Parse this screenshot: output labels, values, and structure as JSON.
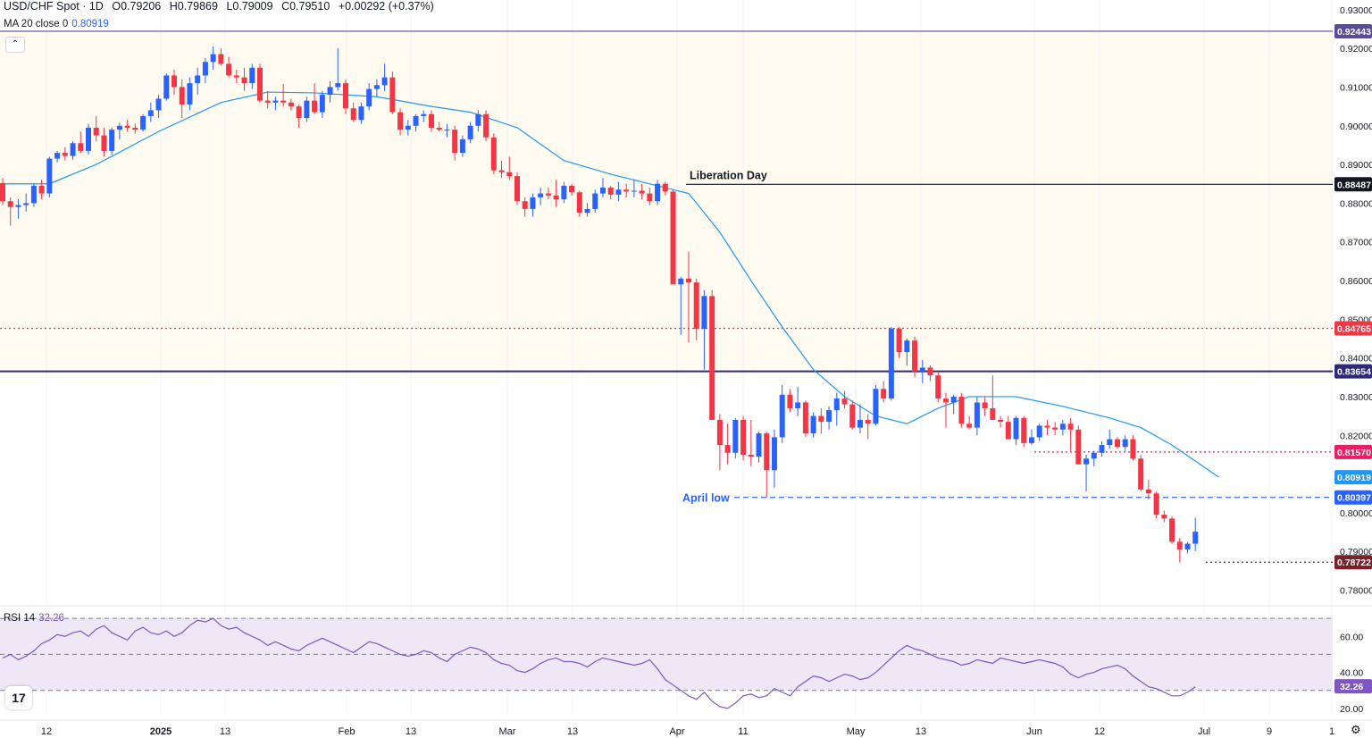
{
  "header": {
    "symbol": "USD/CHF Spot · 1D",
    "o_label": "O",
    "o_value": "0.79206",
    "h_label": "H",
    "h_value": "0.79869",
    "l_label": "L",
    "l_value": "0.79009",
    "c_label": "C",
    "c_value": "0.79510",
    "change": "+0.00292 (+0.37%)"
  },
  "ma_indicator": {
    "label": "MA 20 close 0",
    "value": "0.80919",
    "color": "#2196f3"
  },
  "rsi_indicator": {
    "label": "RSI 14",
    "value": "32.26",
    "color": "#7e57c2"
  },
  "colors": {
    "up": "#2962ff",
    "down": "#f23645",
    "ma": "#2196f3",
    "rsi": "#7e57c2",
    "band": "#ede7f6",
    "shade": "#fffbf0"
  },
  "icons": {
    "collapse": "chevron-up-icon",
    "logo": "tradingview-logo-icon",
    "settings": "gear-icon"
  },
  "chart_data": {
    "type": "candlestick",
    "title": "USD/CHF Spot · 1D",
    "y_range": [
      0.7755,
      0.9325
    ],
    "y_ticks": [
      "0.93000",
      "0.92000",
      "0.91000",
      "0.90000",
      "0.89000",
      "0.88000",
      "0.87000",
      "0.86000",
      "0.85000",
      "0.84000",
      "0.83000",
      "0.82000",
      "0.81000",
      "0.80000",
      "0.79000",
      "0.78000"
    ],
    "x_ticks": [
      "12",
      "2025",
      "13",
      "Feb",
      "13",
      "Mar",
      "13",
      "Apr",
      "11",
      "May",
      "13",
      "Jun",
      "12",
      "Jul",
      "9",
      "1"
    ],
    "annotations": [
      {
        "text": "Liberation Day",
        "price": 0.88487,
        "label": "0.88487",
        "style": "solid",
        "color": "#131722"
      },
      {
        "text": "April low",
        "price": 0.80397,
        "label": "0.80397",
        "style": "dashed",
        "color": "#2962ff"
      },
      {
        "text": "",
        "price": 0.92443,
        "label": "0.92443",
        "style": "solid",
        "color": "#5b4a9a"
      },
      {
        "text": "",
        "price": 0.84765,
        "label": "0.84765",
        "style": "dotted",
        "color": "#f23645"
      },
      {
        "text": "",
        "price": 0.83654,
        "label": "0.83654",
        "style": "solid",
        "color": "#2e2a7a"
      },
      {
        "text": "",
        "price": 0.8157,
        "label": "0.81570",
        "style": "dotted",
        "color": "#e91e63"
      },
      {
        "text": "",
        "price": 0.78722,
        "label": "0.78722",
        "style": "dotted",
        "color": "#7b1f2a"
      }
    ],
    "ma_label": "0.80919",
    "ohlc": [
      [
        0.8852,
        0.8865,
        0.8795,
        0.8805
      ],
      [
        0.8805,
        0.8815,
        0.8742,
        0.879
      ],
      [
        0.879,
        0.881,
        0.876,
        0.8795
      ],
      [
        0.8795,
        0.8825,
        0.8778,
        0.88
      ],
      [
        0.88,
        0.8852,
        0.879,
        0.8845
      ],
      [
        0.8845,
        0.886,
        0.881,
        0.8825
      ],
      [
        0.8825,
        0.892,
        0.8815,
        0.8915
      ],
      [
        0.8915,
        0.8935,
        0.8905,
        0.893
      ],
      [
        0.893,
        0.8945,
        0.891,
        0.8922
      ],
      [
        0.8922,
        0.896,
        0.8912,
        0.8955
      ],
      [
        0.8955,
        0.8985,
        0.893,
        0.8935
      ],
      [
        0.8935,
        0.9005,
        0.8925,
        0.8995
      ],
      [
        0.8995,
        0.9025,
        0.896,
        0.8975
      ],
      [
        0.8975,
        0.8995,
        0.892,
        0.8935
      ],
      [
        0.8935,
        0.8995,
        0.8925,
        0.899
      ],
      [
        0.899,
        0.9008,
        0.8965,
        0.9
      ],
      [
        0.9,
        0.9015,
        0.8985,
        0.8995
      ],
      [
        0.8995,
        0.9005,
        0.898,
        0.899
      ],
      [
        0.899,
        0.903,
        0.8985,
        0.9025
      ],
      [
        0.9025,
        0.906,
        0.901,
        0.904
      ],
      [
        0.904,
        0.908,
        0.902,
        0.907
      ],
      [
        0.907,
        0.9135,
        0.9065,
        0.913
      ],
      [
        0.913,
        0.9145,
        0.908,
        0.91
      ],
      [
        0.91,
        0.912,
        0.902,
        0.9055
      ],
      [
        0.9055,
        0.9125,
        0.904,
        0.911
      ],
      [
        0.911,
        0.915,
        0.908,
        0.913
      ],
      [
        0.913,
        0.9175,
        0.911,
        0.9165
      ],
      [
        0.9165,
        0.9205,
        0.9145,
        0.9185
      ],
      [
        0.9185,
        0.92,
        0.9155,
        0.916
      ],
      [
        0.916,
        0.9178,
        0.9125,
        0.913
      ],
      [
        0.913,
        0.9145,
        0.911,
        0.9125
      ],
      [
        0.9125,
        0.915,
        0.909,
        0.911
      ],
      [
        0.911,
        0.916,
        0.9095,
        0.915
      ],
      [
        0.915,
        0.916,
        0.906,
        0.9065
      ],
      [
        0.9065,
        0.909,
        0.9045,
        0.906
      ],
      [
        0.906,
        0.9075,
        0.904,
        0.9065
      ],
      [
        0.9065,
        0.9108,
        0.905,
        0.906
      ],
      [
        0.906,
        0.907,
        0.904,
        0.905
      ],
      [
        0.905,
        0.9055,
        0.8995,
        0.902
      ],
      [
        0.902,
        0.9075,
        0.901,
        0.9065
      ],
      [
        0.9065,
        0.911,
        0.903,
        0.9035
      ],
      [
        0.9035,
        0.909,
        0.902,
        0.908
      ],
      [
        0.908,
        0.9115,
        0.906,
        0.91
      ],
      [
        0.91,
        0.92,
        0.909,
        0.911
      ],
      [
        0.911,
        0.912,
        0.903,
        0.9045
      ],
      [
        0.9045,
        0.906,
        0.901,
        0.9015
      ],
      [
        0.9015,
        0.906,
        0.9005,
        0.905
      ],
      [
        0.905,
        0.911,
        0.904,
        0.9095
      ],
      [
        0.9095,
        0.912,
        0.9075,
        0.9105
      ],
      [
        0.9105,
        0.916,
        0.909,
        0.9125
      ],
      [
        0.9125,
        0.914,
        0.903,
        0.9035
      ],
      [
        0.9035,
        0.9045,
        0.8975,
        0.899
      ],
      [
        0.899,
        0.9015,
        0.8975,
        0.9
      ],
      [
        0.9,
        0.903,
        0.8985,
        0.9025
      ],
      [
        0.9025,
        0.904,
        0.901,
        0.903
      ],
      [
        0.903,
        0.904,
        0.8985,
        0.8995
      ],
      [
        0.8995,
        0.901,
        0.8985,
        0.899
      ],
      [
        0.899,
        0.9005,
        0.897,
        0.899
      ],
      [
        0.899,
        0.9,
        0.891,
        0.893
      ],
      [
        0.893,
        0.8975,
        0.892,
        0.8965
      ],
      [
        0.8965,
        0.901,
        0.8955,
        0.9
      ],
      [
        0.9,
        0.904,
        0.8985,
        0.903
      ],
      [
        0.903,
        0.904,
        0.896,
        0.897
      ],
      [
        0.897,
        0.898,
        0.8875,
        0.8885
      ],
      [
        0.8885,
        0.891,
        0.8865,
        0.888
      ],
      [
        0.888,
        0.892,
        0.886,
        0.887
      ],
      [
        0.887,
        0.888,
        0.8795,
        0.8805
      ],
      [
        0.8805,
        0.8815,
        0.8765,
        0.8785
      ],
      [
        0.8785,
        0.8825,
        0.8765,
        0.8815
      ],
      [
        0.8815,
        0.884,
        0.8795,
        0.8825
      ],
      [
        0.8825,
        0.884,
        0.881,
        0.882
      ],
      [
        0.882,
        0.886,
        0.879,
        0.881
      ],
      [
        0.881,
        0.8855,
        0.88,
        0.8845
      ],
      [
        0.8845,
        0.885,
        0.882,
        0.8828
      ],
      [
        0.8828,
        0.8832,
        0.8765,
        0.8775
      ],
      [
        0.8775,
        0.88,
        0.8765,
        0.8785
      ],
      [
        0.8785,
        0.8835,
        0.8775,
        0.8825
      ],
      [
        0.8825,
        0.8865,
        0.8815,
        0.884
      ],
      [
        0.884,
        0.8845,
        0.881,
        0.8822
      ],
      [
        0.8822,
        0.8855,
        0.8805,
        0.8835
      ],
      [
        0.8835,
        0.885,
        0.8815,
        0.883
      ],
      [
        0.883,
        0.886,
        0.8815,
        0.8832
      ],
      [
        0.8832,
        0.885,
        0.881,
        0.8825
      ],
      [
        0.8825,
        0.884,
        0.8795,
        0.8805
      ],
      [
        0.8805,
        0.886,
        0.8795,
        0.885
      ],
      [
        0.885,
        0.8855,
        0.882,
        0.883
      ],
      [
        0.883,
        0.8835,
        0.859,
        0.859
      ],
      [
        0.859,
        0.861,
        0.846,
        0.8605
      ],
      [
        0.8605,
        0.8675,
        0.844,
        0.8595
      ],
      [
        0.8595,
        0.8605,
        0.8445,
        0.8475
      ],
      [
        0.8475,
        0.8575,
        0.837,
        0.856
      ],
      [
        0.856,
        0.8575,
        0.824,
        0.824
      ],
      [
        0.824,
        0.8255,
        0.811,
        0.8175
      ],
      [
        0.8175,
        0.823,
        0.8125,
        0.8155
      ],
      [
        0.8155,
        0.8245,
        0.814,
        0.824
      ],
      [
        0.824,
        0.825,
        0.8135,
        0.815
      ],
      [
        0.815,
        0.824,
        0.812,
        0.8145
      ],
      [
        0.8145,
        0.821,
        0.813,
        0.8205
      ],
      [
        0.8205,
        0.821,
        0.804,
        0.811
      ],
      [
        0.811,
        0.8215,
        0.8065,
        0.8195
      ],
      [
        0.8195,
        0.833,
        0.818,
        0.8305
      ],
      [
        0.8305,
        0.832,
        0.826,
        0.827
      ],
      [
        0.827,
        0.8325,
        0.825,
        0.8285
      ],
      [
        0.8285,
        0.829,
        0.8195,
        0.8205
      ],
      [
        0.8205,
        0.826,
        0.8195,
        0.825
      ],
      [
        0.825,
        0.827,
        0.8205,
        0.8235
      ],
      [
        0.8235,
        0.8275,
        0.8215,
        0.8265
      ],
      [
        0.8265,
        0.831,
        0.8225,
        0.8295
      ],
      [
        0.8295,
        0.8315,
        0.827,
        0.828
      ],
      [
        0.828,
        0.829,
        0.8215,
        0.822
      ],
      [
        0.822,
        0.828,
        0.8205,
        0.824
      ],
      [
        0.824,
        0.8255,
        0.819,
        0.823
      ],
      [
        0.823,
        0.833,
        0.8225,
        0.832
      ],
      [
        0.832,
        0.834,
        0.8285,
        0.8295
      ],
      [
        0.8295,
        0.848,
        0.829,
        0.8476
      ],
      [
        0.8476,
        0.848,
        0.84,
        0.8415
      ],
      [
        0.8415,
        0.845,
        0.838,
        0.8445
      ],
      [
        0.8445,
        0.8455,
        0.835,
        0.8365
      ],
      [
        0.8365,
        0.8395,
        0.8335,
        0.8375
      ],
      [
        0.8375,
        0.838,
        0.834,
        0.8355
      ],
      [
        0.8355,
        0.8365,
        0.8285,
        0.8295
      ],
      [
        0.8295,
        0.831,
        0.822,
        0.8285
      ],
      [
        0.8285,
        0.8305,
        0.8255,
        0.83
      ],
      [
        0.83,
        0.831,
        0.822,
        0.823
      ],
      [
        0.823,
        0.825,
        0.8215,
        0.822
      ],
      [
        0.822,
        0.83,
        0.82,
        0.8285
      ],
      [
        0.8285,
        0.83,
        0.825,
        0.827
      ],
      [
        0.827,
        0.8355,
        0.8255,
        0.824
      ],
      [
        0.824,
        0.825,
        0.822,
        0.8235
      ],
      [
        0.8235,
        0.825,
        0.8195,
        0.819
      ],
      [
        0.819,
        0.825,
        0.8175,
        0.8245
      ],
      [
        0.8245,
        0.825,
        0.817,
        0.818
      ],
      [
        0.818,
        0.8215,
        0.8175,
        0.8195
      ],
      [
        0.8195,
        0.823,
        0.8185,
        0.8225
      ],
      [
        0.8225,
        0.824,
        0.82,
        0.822
      ],
      [
        0.822,
        0.8235,
        0.82,
        0.8215
      ],
      [
        0.8215,
        0.824,
        0.82,
        0.823
      ],
      [
        0.823,
        0.8245,
        0.816,
        0.8215
      ],
      [
        0.8215,
        0.8225,
        0.8125,
        0.8125
      ],
      [
        0.8125,
        0.815,
        0.8055,
        0.814
      ],
      [
        0.814,
        0.816,
        0.812,
        0.8155
      ],
      [
        0.8155,
        0.8185,
        0.8145,
        0.8175
      ],
      [
        0.8175,
        0.8215,
        0.8165,
        0.819
      ],
      [
        0.819,
        0.8195,
        0.8165,
        0.817
      ],
      [
        0.817,
        0.82,
        0.816,
        0.819
      ],
      [
        0.819,
        0.82,
        0.8135,
        0.814
      ],
      [
        0.814,
        0.815,
        0.8055,
        0.806
      ],
      [
        0.806,
        0.8085,
        0.8035,
        0.805
      ],
      [
        0.805,
        0.8055,
        0.7985,
        0.7995
      ],
      [
        0.7995,
        0.8005,
        0.7975,
        0.7985
      ],
      [
        0.7985,
        0.799,
        0.792,
        0.7925
      ],
      [
        0.7925,
        0.7935,
        0.7872,
        0.7905
      ],
      [
        0.7905,
        0.7925,
        0.7895,
        0.792
      ],
      [
        0.792,
        0.7987,
        0.7901,
        0.7951
      ]
    ],
    "ma20": [
      [
        0,
        0.885
      ],
      [
        6,
        0.885
      ],
      [
        12,
        0.89
      ],
      [
        20,
        0.8985
      ],
      [
        28,
        0.906
      ],
      [
        34,
        0.9087
      ],
      [
        40,
        0.9085
      ],
      [
        48,
        0.9075
      ],
      [
        55,
        0.905
      ],
      [
        60,
        0.9035
      ],
      [
        66,
        0.8995
      ],
      [
        72,
        0.891
      ],
      [
        78,
        0.8875
      ],
      [
        84,
        0.8845
      ],
      [
        88,
        0.8825
      ],
      [
        92,
        0.8725
      ],
      [
        96,
        0.86
      ],
      [
        100,
        0.848
      ],
      [
        104,
        0.837
      ],
      [
        108,
        0.83
      ],
      [
        112,
        0.825
      ],
      [
        116,
        0.823
      ],
      [
        120,
        0.827
      ],
      [
        124,
        0.83
      ],
      [
        130,
        0.83
      ],
      [
        136,
        0.8275
      ],
      [
        142,
        0.8245
      ],
      [
        146,
        0.822
      ],
      [
        150,
        0.8175
      ],
      [
        156,
        0.8092
      ]
    ],
    "rsi": {
      "y_range": [
        14,
        76
      ],
      "levels": [
        70,
        50,
        30
      ],
      "ticks": [
        "60.00",
        "40.00",
        "20.00"
      ],
      "value_label": "32.26",
      "values": [
        48,
        50,
        47,
        49,
        52,
        56,
        58,
        61,
        60,
        62,
        63,
        60,
        64,
        66,
        62,
        60,
        58,
        63,
        65,
        62,
        61,
        63,
        60,
        62,
        66,
        69,
        68,
        70,
        66,
        64,
        65,
        62,
        60,
        58,
        55,
        57,
        55,
        53,
        52,
        55,
        57,
        59,
        57,
        55,
        53,
        51,
        54,
        57,
        56,
        54,
        52,
        50,
        49,
        50,
        52,
        51,
        48,
        46,
        50,
        52,
        54,
        53,
        51,
        47,
        45,
        44,
        41,
        40,
        42,
        45,
        47,
        48,
        46,
        46,
        45,
        43,
        46,
        48,
        47,
        46,
        45,
        44,
        45,
        47,
        42,
        36,
        33,
        30,
        27,
        25,
        29,
        24,
        21,
        20,
        23,
        27,
        28,
        26,
        27,
        31,
        29,
        27,
        32,
        35,
        38,
        37,
        35,
        37,
        39,
        38,
        36,
        37,
        40,
        44,
        48,
        52,
        55,
        53,
        52,
        50,
        48,
        47,
        46,
        44,
        45,
        47,
        46,
        45,
        48,
        47,
        46,
        45,
        46,
        47,
        46,
        45,
        43,
        39,
        37,
        39,
        40,
        42,
        43,
        44,
        42,
        38,
        35,
        32,
        31,
        29,
        27,
        27,
        29,
        32
      ]
    }
  }
}
